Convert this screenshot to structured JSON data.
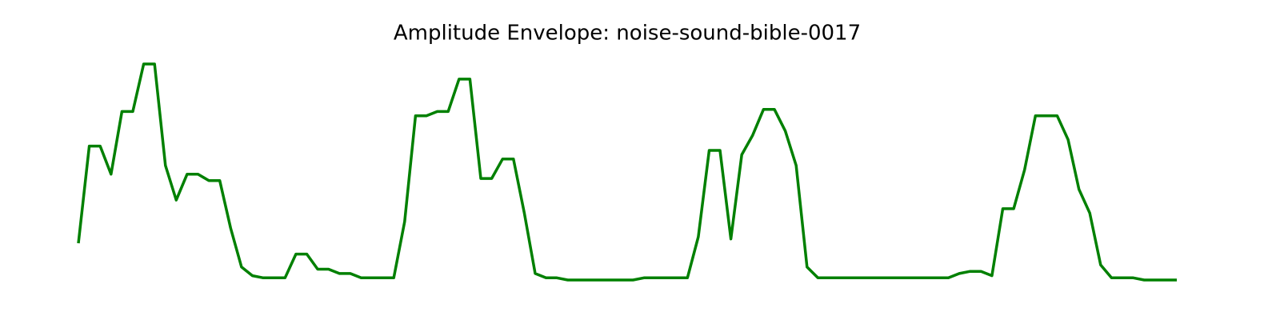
{
  "chart_data": {
    "type": "line",
    "title": "Amplitude Envelope: noise-sound-bible-0017",
    "color": "#008000",
    "ylim": [
      0,
      1
    ],
    "values": [
      0.17,
      0.62,
      0.62,
      0.49,
      0.78,
      0.78,
      1.0,
      1.0,
      0.53,
      0.37,
      0.49,
      0.49,
      0.46,
      0.46,
      0.24,
      0.06,
      0.02,
      0.01,
      0.01,
      0.01,
      0.12,
      0.12,
      0.05,
      0.05,
      0.03,
      0.03,
      0.01,
      0.01,
      0.01,
      0.01,
      0.27,
      0.76,
      0.76,
      0.78,
      0.78,
      0.93,
      0.93,
      0.47,
      0.47,
      0.56,
      0.56,
      0.31,
      0.03,
      0.01,
      0.01,
      0.0,
      0.0,
      0.0,
      0.0,
      0.0,
      0.0,
      0.0,
      0.01,
      0.01,
      0.01,
      0.01,
      0.01,
      0.2,
      0.6,
      0.6,
      0.19,
      0.58,
      0.67,
      0.79,
      0.79,
      0.69,
      0.53,
      0.06,
      0.01,
      0.01,
      0.01,
      0.01,
      0.01,
      0.01,
      0.01,
      0.01,
      0.01,
      0.01,
      0.01,
      0.01,
      0.01,
      0.03,
      0.04,
      0.04,
      0.02,
      0.33,
      0.33,
      0.51,
      0.76,
      0.76,
      0.76,
      0.65,
      0.42,
      0.31,
      0.07,
      0.01,
      0.01,
      0.01,
      0.0,
      0.0,
      0.0,
      0.0
    ]
  }
}
